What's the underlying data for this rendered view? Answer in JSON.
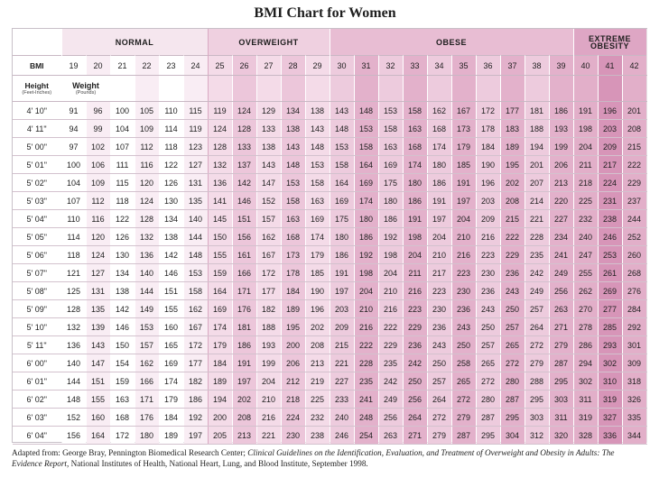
{
  "title": "BMI Chart for Women",
  "categories": {
    "normal": "NORMAL",
    "overweight": "OVERWEIGHT",
    "obese": "OBESE",
    "extreme": "EXTREME OBESITY"
  },
  "bmi_label": "BMI",
  "bmi_values": [
    19,
    20,
    21,
    22,
    23,
    24,
    25,
    26,
    27,
    28,
    29,
    30,
    31,
    32,
    33,
    34,
    35,
    36,
    37,
    38,
    39,
    40,
    41,
    42
  ],
  "height_label": "Height",
  "height_sub": "(Feet-Inches)",
  "weight_label": "Weight",
  "weight_sub": "(Pounds)",
  "rows": [
    {
      "h": "4' 10\"",
      "w": [
        91,
        96,
        100,
        105,
        110,
        115,
        119,
        124,
        129,
        134,
        138,
        143,
        148,
        153,
        158,
        162,
        167,
        172,
        177,
        181,
        186,
        191,
        196,
        201
      ]
    },
    {
      "h": "4' 11\"",
      "w": [
        94,
        99,
        104,
        109,
        114,
        119,
        124,
        128,
        133,
        138,
        143,
        148,
        153,
        158,
        163,
        168,
        173,
        178,
        183,
        188,
        193,
        198,
        203,
        208
      ]
    },
    {
      "h": "5' 00\"",
      "w": [
        97,
        102,
        107,
        112,
        118,
        123,
        128,
        133,
        138,
        143,
        148,
        153,
        158,
        163,
        168,
        174,
        179,
        184,
        189,
        194,
        199,
        204,
        209,
        215
      ]
    },
    {
      "h": "5' 01\"",
      "w": [
        100,
        106,
        111,
        116,
        122,
        127,
        132,
        137,
        143,
        148,
        153,
        158,
        164,
        169,
        174,
        180,
        185,
        190,
        195,
        201,
        206,
        211,
        217,
        222
      ]
    },
    {
      "h": "5' 02\"",
      "w": [
        104,
        109,
        115,
        120,
        126,
        131,
        136,
        142,
        147,
        153,
        158,
        164,
        169,
        175,
        180,
        186,
        191,
        196,
        202,
        207,
        213,
        218,
        224,
        229
      ]
    },
    {
      "h": "5' 03\"",
      "w": [
        107,
        112,
        118,
        124,
        130,
        135,
        141,
        146,
        152,
        158,
        163,
        169,
        174,
        180,
        186,
        191,
        197,
        203,
        208,
        214,
        220,
        225,
        231,
        237
      ]
    },
    {
      "h": "5' 04\"",
      "w": [
        110,
        116,
        122,
        128,
        134,
        140,
        145,
        151,
        157,
        163,
        169,
        175,
        180,
        186,
        191,
        197,
        204,
        209,
        215,
        221,
        227,
        232,
        238,
        244
      ]
    },
    {
      "h": "5' 05\"",
      "w": [
        114,
        120,
        126,
        132,
        138,
        144,
        150,
        156,
        162,
        168,
        174,
        180,
        186,
        192,
        198,
        204,
        210,
        216,
        222,
        228,
        234,
        240,
        246,
        252
      ]
    },
    {
      "h": "5' 06\"",
      "w": [
        118,
        124,
        130,
        136,
        142,
        148,
        155,
        161,
        167,
        173,
        179,
        186,
        192,
        198,
        204,
        210,
        216,
        223,
        229,
        235,
        241,
        247,
        253,
        260
      ]
    },
    {
      "h": "5' 07\"",
      "w": [
        121,
        127,
        134,
        140,
        146,
        153,
        159,
        166,
        172,
        178,
        185,
        191,
        198,
        204,
        211,
        217,
        223,
        230,
        236,
        242,
        249,
        255,
        261,
        268
      ]
    },
    {
      "h": "5' 08\"",
      "w": [
        125,
        131,
        138,
        144,
        151,
        158,
        164,
        171,
        177,
        184,
        190,
        197,
        204,
        210,
        216,
        223,
        230,
        236,
        243,
        249,
        256,
        262,
        269,
        276
      ]
    },
    {
      "h": "5' 09\"",
      "w": [
        128,
        135,
        142,
        149,
        155,
        162,
        169,
        176,
        182,
        189,
        196,
        203,
        210,
        216,
        223,
        230,
        236,
        243,
        250,
        257,
        263,
        270,
        277,
        284
      ]
    },
    {
      "h": "5' 10\"",
      "w": [
        132,
        139,
        146,
        153,
        160,
        167,
        174,
        181,
        188,
        195,
        202,
        209,
        216,
        222,
        229,
        236,
        243,
        250,
        257,
        264,
        271,
        278,
        285,
        292
      ]
    },
    {
      "h": "5' 11\"",
      "w": [
        136,
        143,
        150,
        157,
        165,
        172,
        179,
        186,
        193,
        200,
        208,
        215,
        222,
        229,
        236,
        243,
        250,
        257,
        265,
        272,
        279,
        286,
        293,
        301
      ]
    },
    {
      "h": "6' 00\"",
      "w": [
        140,
        147,
        154,
        162,
        169,
        177,
        184,
        191,
        199,
        206,
        213,
        221,
        228,
        235,
        242,
        250,
        258,
        265,
        272,
        279,
        287,
        294,
        302,
        309
      ]
    },
    {
      "h": "6' 01\"",
      "w": [
        144,
        151,
        159,
        166,
        174,
        182,
        189,
        197,
        204,
        212,
        219,
        227,
        235,
        242,
        250,
        257,
        265,
        272,
        280,
        288,
        295,
        302,
        310,
        318
      ]
    },
    {
      "h": "6' 02\"",
      "w": [
        148,
        155,
        163,
        171,
        179,
        186,
        194,
        202,
        210,
        218,
        225,
        233,
        241,
        249,
        256,
        264,
        272,
        280,
        287,
        295,
        303,
        311,
        319,
        326
      ]
    },
    {
      "h": "6' 03\"",
      "w": [
        152,
        160,
        168,
        176,
        184,
        192,
        200,
        208,
        216,
        224,
        232,
        240,
        248,
        256,
        264,
        272,
        279,
        287,
        295,
        303,
        311,
        319,
        327,
        335
      ]
    },
    {
      "h": "6' 04\"",
      "w": [
        156,
        164,
        172,
        180,
        189,
        197,
        205,
        213,
        221,
        230,
        238,
        246,
        254,
        263,
        271,
        279,
        287,
        295,
        304,
        312,
        320,
        328,
        336,
        344
      ]
    }
  ],
  "footer": {
    "prefix": "Adapted from: George Bray, Pennington Biomedical Research Center; ",
    "italic1": "Clinical Guidelines on the Identification, Evaluation, and Treatment of Overweight and Obesity in Adults: The Evidence Report",
    "suffix": ", National Institutes of Health, National Heart, Lung, and Blood Institute, September 1998."
  }
}
